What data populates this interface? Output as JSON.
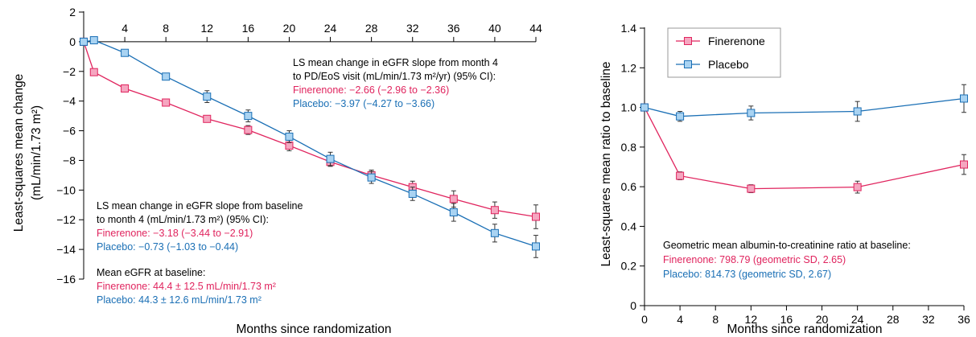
{
  "colors": {
    "finerenone": "#e0245e",
    "placebo": "#1a6fb5",
    "axis": "#000000"
  },
  "left_chart": {
    "ylabel_line1": "Least-squares mean change",
    "ylabel_line2": "(mL/min/1.73 m²)",
    "xlabel": "Months since randomization",
    "annot_top": {
      "l1": "LS mean change in eGFR slope from month 4",
      "l2": "to PD/EoS visit (mL/min/1.73 m²/yr) (95% CI):",
      "fin": "Finerenone: −2.66 (−2.96 to −2.36)",
      "pla": "Placebo: −3.97 (−4.27 to −3.66)"
    },
    "annot_mid": {
      "l1": "LS mean change in eGFR slope from baseline",
      "l2": "to month 4 (mL/min/1.73 m²) (95% CI):",
      "fin": "Finerenone: −3.18 (−3.44 to −2.91)",
      "pla": "Placebo: −0.73 (−1.03 to −0.44)"
    },
    "annot_base": {
      "l1": "Mean eGFR at baseline:",
      "fin": "Finerenone: 44.4 ± 12.5 mL/min/1.73 m²",
      "pla": "Placebo: 44.3 ± 12.6 mL/min/1.73 m²"
    }
  },
  "right_chart": {
    "ylabel": "Least-squares mean ratio to baseline",
    "xlabel": "Months since randomization",
    "legend": [
      "Finerenone",
      "Placebo"
    ],
    "annot": {
      "l1": "Geometric mean albumin-to-creatinine ratio at baseline:",
      "fin": "Finerenone: 798.79 (geometric SD, 2.65)",
      "pla": "Placebo: 814.73 (geometric SD, 2.67)"
    }
  },
  "chart_data": [
    {
      "type": "line",
      "xlabel": "Months since randomization",
      "ylabel": "Least-squares mean change (mL/min/1.73 m²)",
      "xlim": [
        0,
        44
      ],
      "ylim": [
        -16,
        2
      ],
      "x_ticks": [
        4,
        8,
        12,
        16,
        20,
        24,
        28,
        32,
        36,
        40,
        44
      ],
      "y_ticks": [
        2,
        0,
        -2,
        -4,
        -6,
        -8,
        -10,
        -12,
        -14,
        -16
      ],
      "x_axis_position": "top",
      "series": [
        {
          "name": "Finerenone",
          "x": [
            0,
            1,
            4,
            8,
            12,
            16,
            20,
            24,
            28,
            32,
            36,
            40,
            44
          ],
          "y": [
            0,
            -2.05,
            -3.15,
            -4.1,
            -5.2,
            -5.95,
            -7.0,
            -8.1,
            -9.0,
            -9.8,
            -10.6,
            -11.35,
            -11.8
          ],
          "ci_half": [
            0,
            0.1,
            0.15,
            0.15,
            0.2,
            0.3,
            0.35,
            0.3,
            0.35,
            0.4,
            0.55,
            0.55,
            0.8
          ]
        },
        {
          "name": "Placebo",
          "x": [
            0,
            1,
            4,
            8,
            12,
            16,
            20,
            24,
            28,
            32,
            36,
            40,
            44
          ],
          "y": [
            0,
            0.1,
            -0.75,
            -2.35,
            -3.7,
            -5.0,
            -6.4,
            -7.9,
            -9.15,
            -10.25,
            -11.5,
            -12.9,
            -13.8
          ],
          "ci_half": [
            0,
            0.1,
            0.15,
            0.15,
            0.4,
            0.4,
            0.4,
            0.45,
            0.4,
            0.45,
            0.6,
            0.6,
            0.75
          ]
        }
      ]
    },
    {
      "type": "line",
      "xlabel": "Months since randomization",
      "ylabel": "Least-squares mean ratio to baseline",
      "xlim": [
        0,
        36
      ],
      "ylim": [
        0,
        1.4
      ],
      "x_ticks": [
        0,
        4,
        8,
        12,
        16,
        20,
        24,
        28,
        32,
        36
      ],
      "y_ticks": [
        0,
        0.2,
        0.4,
        0.6,
        0.8,
        1.0,
        1.2,
        1.4
      ],
      "legend_position": "top-left",
      "series": [
        {
          "name": "Finerenone",
          "x": [
            0,
            4,
            12,
            24,
            36
          ],
          "y": [
            1.0,
            0.655,
            0.59,
            0.598,
            0.712
          ],
          "ci_half": [
            0,
            0.02,
            0.02,
            0.03,
            0.05
          ]
        },
        {
          "name": "Placebo",
          "x": [
            0,
            4,
            12,
            24,
            36
          ],
          "y": [
            1.0,
            0.955,
            0.972,
            0.98,
            1.045
          ],
          "ci_half": [
            0,
            0.025,
            0.035,
            0.05,
            0.07
          ]
        }
      ]
    }
  ]
}
